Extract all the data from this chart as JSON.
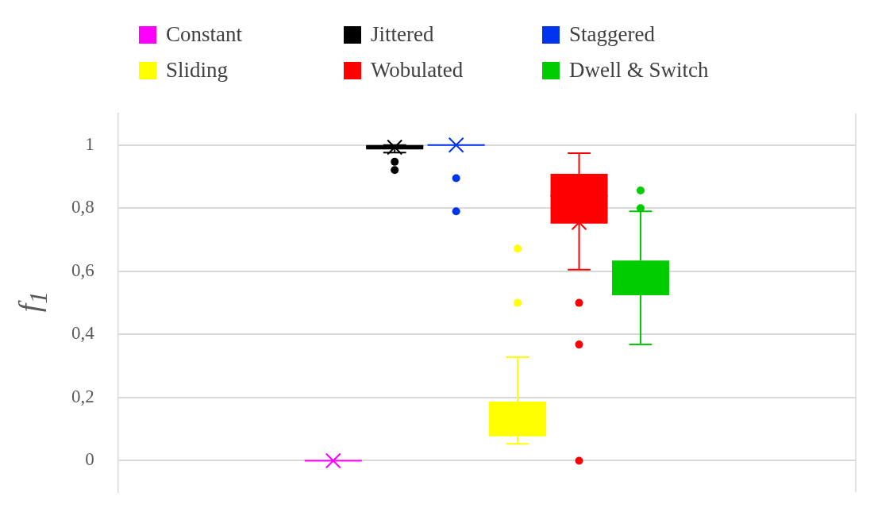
{
  "chart_data": {
    "type": "box",
    "ylabel": "f$_{1}$",
    "categories": [
      null
    ],
    "series": [
      {
        "name": "Constant",
        "color": "#ff00ff",
        "boxes": [
          {
            "low": 0,
            "q1": 0,
            "median": 0,
            "q3": 0,
            "high": 0,
            "mean": 0
          }
        ]
      },
      {
        "name": "Jittered",
        "color": "#000000",
        "boxes": [
          {
            "low": 0.976,
            "q1": 0.986,
            "median": 0.995,
            "q3": 1.0,
            "high": 1.0,
            "mean": 0.993,
            "outliers": [
              0.947,
              0.921
            ]
          }
        ]
      },
      {
        "name": "Staggered",
        "color": "#0033ee",
        "boxes": [
          {
            "low": 1,
            "q1": 1,
            "median": 1,
            "q3": 1,
            "high": 1,
            "mean": 1,
            "outliers": [
              0.895,
              0.79
            ]
          }
        ]
      },
      {
        "name": "Sliding",
        "color": "#ffff00",
        "boxes": [
          {
            "low": 0.053,
            "q1": 0.077,
            "median": 0.12,
            "q3": 0.187,
            "high": 0.328,
            "outliers": [
              0.672,
              0.5
            ]
          }
        ]
      },
      {
        "name": "Wobulated",
        "color": "#ff0000",
        "boxes": [
          {
            "low": 0.605,
            "q1": 0.751,
            "median": 0.84,
            "q3": 0.909,
            "high": 0.974,
            "mean": 0.755,
            "outliers": [
              0.5,
              0.368,
              0
            ]
          }
        ]
      },
      {
        "name": "Dwell & Switch",
        "color": "#00cc00",
        "boxes": [
          {
            "low": 0.368,
            "q1": 0.524,
            "median": 0.57,
            "q3": 0.634,
            "high": 0.79,
            "outliers": [
              0.856,
              0.8
            ]
          }
        ]
      }
    ],
    "ylim": [
      -0.1,
      1.1
    ],
    "yticks": [
      0,
      {
        "value": 0.2,
        "label": "0,2"
      },
      {
        "value": 0.4,
        "label": "0,4"
      },
      {
        "value": 0.6,
        "label": "0,6"
      },
      {
        "value": 0.8,
        "label": "0,8"
      },
      1
    ],
    "grid": "y",
    "legend": "top"
  }
}
